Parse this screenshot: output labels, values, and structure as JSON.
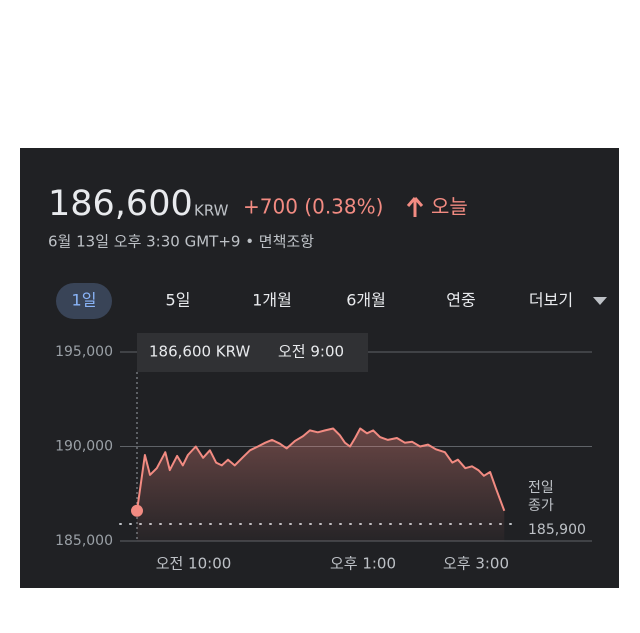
{
  "header": {
    "price": "186,600",
    "currency": "KRW",
    "change": "+700 (0.38%)",
    "period": "오늘",
    "timestamp": "6월 13일 오후 3:30 GMT+9 • 면책조항"
  },
  "tabs": {
    "items": [
      "1일",
      "5일",
      "1개월",
      "6개월",
      "연중",
      "더보기"
    ],
    "selected": 0
  },
  "tooltip": {
    "price": "186,600 KRW",
    "time": "오전 9:00"
  },
  "chart_data": {
    "type": "line",
    "x": [
      9.0,
      9.14,
      9.23,
      9.35,
      9.5,
      9.58,
      9.71,
      9.81,
      9.9,
      10.04,
      10.17,
      10.29,
      10.4,
      10.5,
      10.61,
      10.73,
      10.88,
      11.0,
      11.14,
      11.27,
      11.39,
      11.53,
      11.65,
      11.8,
      11.94,
      12.06,
      12.2,
      12.33,
      12.47,
      12.59,
      12.68,
      12.77,
      12.86,
      12.95,
      13.07,
      13.18,
      13.3,
      13.44,
      13.6,
      13.74,
      13.87,
      14.01,
      14.15,
      14.29,
      14.45,
      14.58,
      14.68,
      14.81,
      14.93,
      15.04,
      15.14,
      15.25,
      15.35,
      15.5
    ],
    "series": [
      {
        "color": "#f28b82",
        "values": [
          186600,
          189550,
          188500,
          188850,
          189700,
          188750,
          189500,
          189000,
          189550,
          190000,
          189400,
          189800,
          189150,
          189000,
          189300,
          189000,
          189450,
          189800,
          190000,
          190200,
          190350,
          190150,
          189900,
          190300,
          190550,
          190850,
          190750,
          190850,
          190950,
          190600,
          190200,
          190000,
          190450,
          190950,
          190700,
          190850,
          190500,
          190350,
          190450,
          190200,
          190250,
          190000,
          190100,
          189850,
          189700,
          189150,
          189300,
          188850,
          188950,
          188750,
          188450,
          188650,
          187800,
          186600
        ]
      }
    ],
    "xlim": [
      9,
      17
    ],
    "xticks": [
      {
        "value": 10,
        "label": "오전 10:00"
      },
      {
        "value": 13,
        "label": "오후 1:00"
      },
      {
        "value": 15,
        "label": "오후 3:00"
      }
    ],
    "ylim": [
      185000,
      195000
    ],
    "yticks": [
      {
        "value": 185000,
        "label": "185,000"
      },
      {
        "value": 190000,
        "label": "190,000"
      },
      {
        "value": 195000,
        "label": "195,000"
      }
    ],
    "grid": true,
    "previous_close": {
      "label_lines": [
        "전일",
        "종가"
      ],
      "value": 185900,
      "value_label": "185,900"
    }
  }
}
